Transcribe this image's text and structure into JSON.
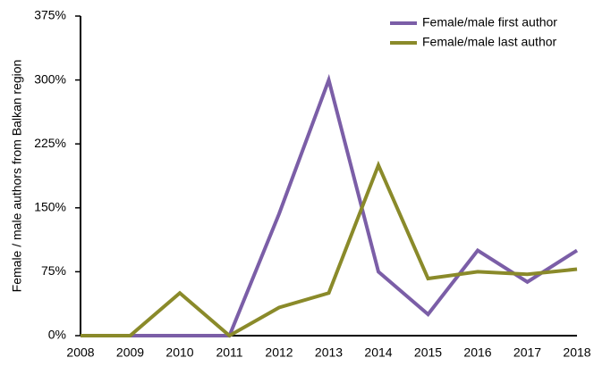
{
  "chart_data": {
    "type": "line",
    "y_label": "Female / male authors from Balkan region",
    "categories": [
      "2008",
      "2009",
      "2010",
      "2011",
      "2012",
      "2013",
      "2014",
      "2015",
      "2016",
      "2017",
      "2018"
    ],
    "series": [
      {
        "name": "Female/male first author",
        "color": "#7b5ea7",
        "values": [
          0,
          0,
          0,
          0,
          143,
          300,
          75,
          25,
          100,
          63,
          100
        ]
      },
      {
        "name": "Female/male last author",
        "color": "#8a8a2a",
        "values": [
          0,
          0,
          50,
          0,
          33,
          50,
          200,
          67,
          75,
          72,
          78
        ]
      }
    ],
    "ylim": [
      0,
      375
    ],
    "yticks": [
      {
        "value": 0,
        "label": "0%"
      },
      {
        "value": 75,
        "label": "75%"
      },
      {
        "value": 150,
        "label": "150%"
      },
      {
        "value": 225,
        "label": "225%"
      },
      {
        "value": 300,
        "label": "300%"
      },
      {
        "value": 375,
        "label": "375%"
      }
    ],
    "legend": "top-right",
    "grid": false
  }
}
